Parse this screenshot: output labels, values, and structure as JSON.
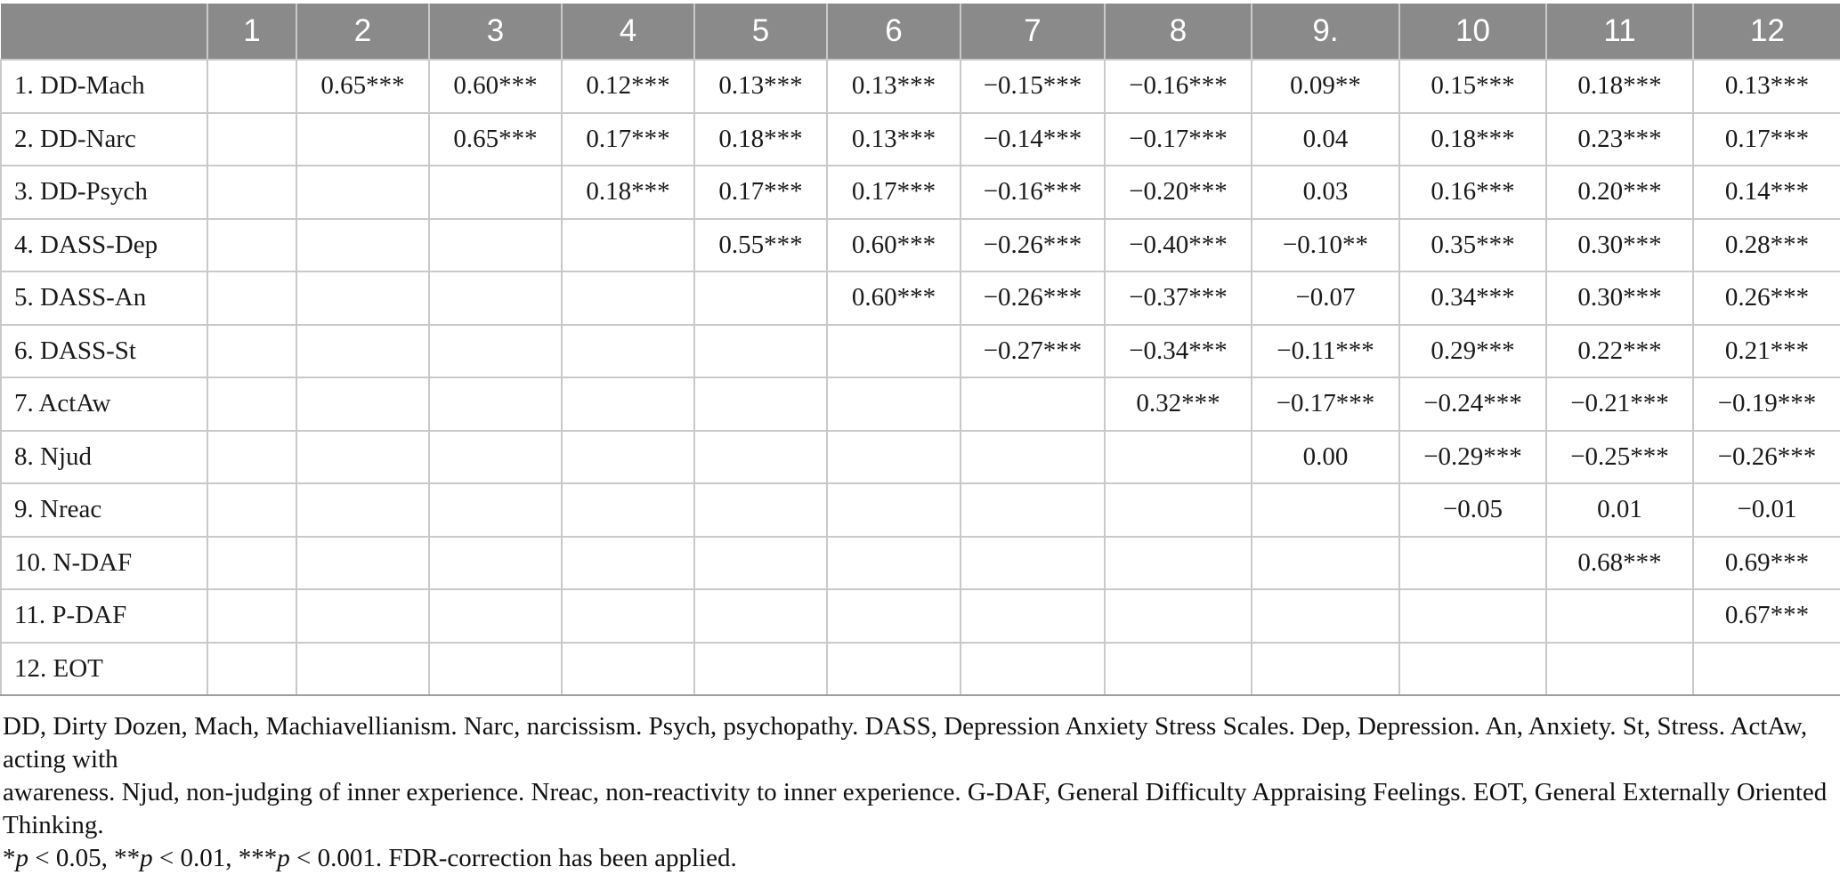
{
  "table": {
    "columns": [
      "1",
      "2",
      "3",
      "4",
      "5",
      "6",
      "7",
      "8",
      "9.",
      "10",
      "11",
      "12"
    ],
    "rows": [
      {
        "label": "1. DD-Mach",
        "values": [
          "",
          "0.65***",
          "0.60***",
          "0.12***",
          "0.13***",
          "0.13***",
          "−0.15***",
          "−0.16***",
          "0.09**",
          "0.15***",
          "0.18***",
          "0.13***"
        ]
      },
      {
        "label": "2. DD-Narc",
        "values": [
          "",
          "",
          "0.65***",
          "0.17***",
          "0.18***",
          "0.13***",
          "−0.14***",
          "−0.17***",
          "0.04",
          "0.18***",
          "0.23***",
          "0.17***"
        ]
      },
      {
        "label": "3. DD-Psych",
        "values": [
          "",
          "",
          "",
          "0.18***",
          "0.17***",
          "0.17***",
          "−0.16***",
          "−0.20***",
          "0.03",
          "0.16***",
          "0.20***",
          "0.14***"
        ]
      },
      {
        "label": "4. DASS-Dep",
        "values": [
          "",
          "",
          "",
          "",
          "0.55***",
          "0.60***",
          "−0.26***",
          "−0.40***",
          "−0.10**",
          "0.35***",
          "0.30***",
          "0.28***"
        ]
      },
      {
        "label": "5. DASS-An",
        "values": [
          "",
          "",
          "",
          "",
          "",
          "0.60***",
          "−0.26***",
          "−0.37***",
          "−0.07",
          "0.34***",
          "0.30***",
          "0.26***"
        ]
      },
      {
        "label": "6. DASS-St",
        "values": [
          "",
          "",
          "",
          "",
          "",
          "",
          "−0.27***",
          "−0.34***",
          "−0.11***",
          "0.29***",
          "0.22***",
          "0.21***"
        ]
      },
      {
        "label": "7. ActAw",
        "values": [
          "",
          "",
          "",
          "",
          "",
          "",
          "",
          "0.32***",
          "−0.17***",
          "−0.24***",
          "−0.21***",
          "−0.19***"
        ]
      },
      {
        "label": "8. Njud",
        "values": [
          "",
          "",
          "",
          "",
          "",
          "",
          "",
          "",
          "0.00",
          "−0.29***",
          "−0.25***",
          "−0.26***"
        ]
      },
      {
        "label": "9. Nreac",
        "values": [
          "",
          "",
          "",
          "",
          "",
          "",
          "",
          "",
          "",
          "−0.05",
          "0.01",
          "−0.01"
        ]
      },
      {
        "label": "10. N-DAF",
        "values": [
          "",
          "",
          "",
          "",
          "",
          "",
          "",
          "",
          "",
          "",
          "0.68***",
          "0.69***"
        ]
      },
      {
        "label": "11. P-DAF",
        "values": [
          "",
          "",
          "",
          "",
          "",
          "",
          "",
          "",
          "",
          "",
          "",
          "0.67***"
        ]
      },
      {
        "label": "12. EOT",
        "values": [
          "",
          "",
          "",
          "",
          "",
          "",
          "",
          "",
          "",
          "",
          "",
          ""
        ]
      }
    ]
  },
  "footnotes": {
    "abbreviations": [
      "DD, Dirty Dozen, Mach, Machiavellianism. Narc, narcissism. Psych, psychopathy. DASS, Depression Anxiety Stress Scales. Dep, Depression. An, Anxiety. St, Stress. ActAw, acting with",
      "awareness. Njud, non-judging of inner experience. Nreac, non-reactivity to inner experience. G-DAF, General Difficulty Appraising Feelings. EOT, General Externally Oriented Thinking."
    ],
    "significance": [
      {
        "text": "*",
        "italic": false
      },
      {
        "text": "p",
        "italic": true
      },
      {
        "text": " < 0.05, **",
        "italic": false
      },
      {
        "text": "p",
        "italic": true
      },
      {
        "text": " < 0.01, ***",
        "italic": false
      },
      {
        "text": "p",
        "italic": true
      },
      {
        "text": " < 0.001. FDR-correction has been applied.",
        "italic": false
      }
    ]
  },
  "colors": {
    "header_bg": "#8a8a8a",
    "header_text": "#ffffff",
    "grid_line": "#c9c9c9",
    "table_bottom_line": "#9e9e9e",
    "body_text": "#1a1a1a"
  }
}
